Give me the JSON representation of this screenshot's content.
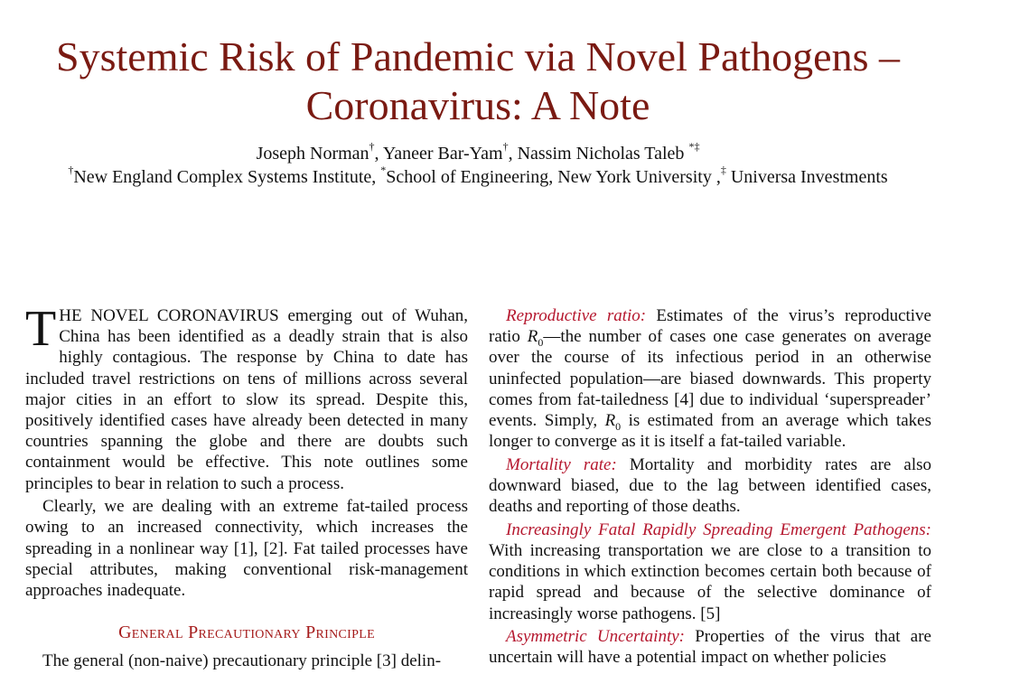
{
  "paper": {
    "title": "Systemic Risk of Pandemic via Novel Pathogens – Coronavirus: A Note",
    "authors": [
      {
        "name": "Joseph Norman",
        "mark": "†"
      },
      {
        "name": "Yaneer Bar-Yam",
        "mark": "†"
      },
      {
        "name": "Nassim Nicholas Taleb",
        "mark": "*‡"
      }
    ],
    "affiliations": [
      {
        "mark": "†",
        "name": "New England Complex Systems Institute,"
      },
      {
        "mark": "*",
        "name": "School of Engineering, New York University ,"
      },
      {
        "mark": "‡",
        "name": "Universa Investments"
      }
    ]
  },
  "left_column": {
    "intro_dropcap": "T",
    "intro_caps": "HE NOVEL CORONAVIRUS",
    "intro_rest": " emerging out of Wuhan, China has been identified as a deadly strain that is also highly contagious. The response by China to date has included travel restrictions on tens of millions across several major cities in an effort to slow its spread. Despite this, positively identified cases have already been detected in many countries spanning the globe and there are doubts such containment would be effective. This note outlines some principles to bear in relation to such a process.",
    "para2": "Clearly, we are dealing with an extreme fat-tailed process owing to an increased connectivity, which increases the spreading in a nonlinear way [1], [2]. Fat tailed processes have special attributes, making conventional risk-management approaches inadequate.",
    "section_heading": "General Precautionary Principle",
    "para3_start": "The general (non-naive) precautionary principle [3] delin-"
  },
  "right_column": {
    "p1_term": "Reproductive ratio:",
    "p1_a": " Estimates of the virus’s reproductive ratio ",
    "p1_var": "R",
    "p1_sub": "0",
    "p1_b": "—the number of cases one case generates on average over the course of its infectious period in an otherwise uninfected population—are biased downwards. This property comes from fat-tailedness [4] due to individual ‘superspreader’ events. Simply, ",
    "p1_c": " is estimated from an average which takes longer to converge as it is itself a fat-tailed variable.",
    "p2_term": "Mortality rate:",
    "p2_text": " Mortality and morbidity rates are also downward biased, due to the lag between identified cases, deaths and reporting of those deaths.",
    "p3_term": "Increasingly Fatal Rapidly Spreading Emergent Pathogens:",
    "p3_text": " With increasing transportation we are close to a transition to conditions in which extinction becomes certain both because of rapid spread and because of the selective dominance of increasingly worse pathogens. [5]",
    "p4_term": "Asymmetric Uncertainty:",
    "p4_text": " Properties of the virus that are uncertain will have a potential impact on whether policies"
  },
  "colors": {
    "title": "#7a1a12",
    "term": "#b5172e",
    "section_heading": "#a51b1b"
  }
}
